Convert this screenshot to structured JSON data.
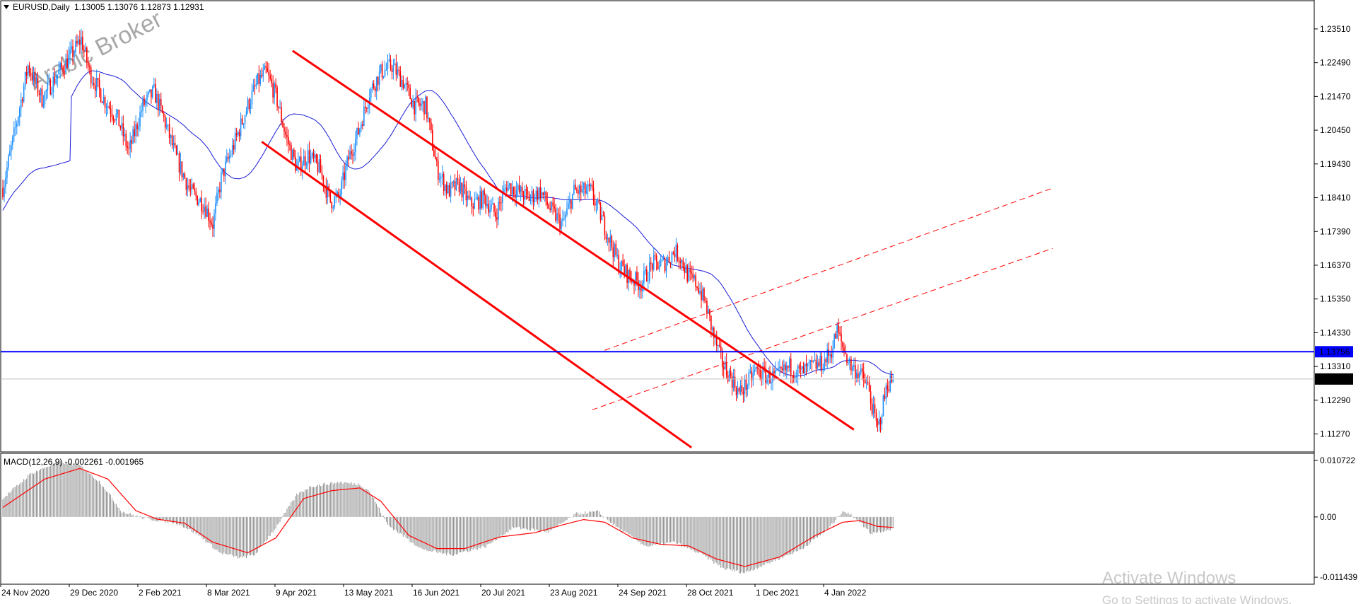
{
  "header": {
    "symbol_label": "EURUSD,Daily",
    "ohlc_text": "1.13005 1.13076 1.12873 1.12931",
    "menu_arrow_icon": "triangle-down-icon"
  },
  "watermark": "Arabic Broker",
  "macd_label": "MACD(12,26,9) -0.002261 -0.001965",
  "windows_activation": {
    "title": "Activate Windows",
    "subtitle": "Go to Settings to activate Windows."
  },
  "colors": {
    "bull": "#1e90ff",
    "bear": "#ff0000",
    "ma": "#1a1ad6",
    "channel": "#ff0000",
    "hline": "#0000ff",
    "macd_hist": "#8c8c8c",
    "macd_signal": "#ff0000"
  },
  "chart_data": {
    "type": "candlestick",
    "symbol": "EURUSD",
    "timeframe": "Daily",
    "price_ticks": [
      "1.23510",
      "1.22490",
      "1.21470",
      "1.20450",
      "1.19430",
      "1.18410",
      "1.17390",
      "1.16370",
      "1.15350",
      "1.14330",
      "1.13310",
      "1.12290",
      "1.11270"
    ],
    "price_range": [
      1.1077,
      1.2385
    ],
    "current_price": "1.12931",
    "hline_price": "1.13756",
    "date_ticks": [
      "24 Nov 2020",
      "29 Dec 2020",
      "2 Feb 2021",
      "8 Mar 2021",
      "9 Apr 2021",
      "13 May 2021",
      "16 Jun 2021",
      "20 Jul 2021",
      "23 Aug 2021",
      "24 Sep 2021",
      "28 Oct 2021",
      "1 Dec 2021",
      "4 Jan 2022"
    ],
    "price_path": [
      [
        0,
        1.187
      ],
      [
        8,
        1.203
      ],
      [
        18,
        1.224
      ],
      [
        28,
        1.214
      ],
      [
        40,
        1.222
      ],
      [
        50,
        1.228
      ],
      [
        56,
        1.232
      ],
      [
        62,
        1.222
      ],
      [
        72,
        1.214
      ],
      [
        82,
        1.208
      ],
      [
        90,
        1.198
      ],
      [
        100,
        1.212
      ],
      [
        108,
        1.216
      ],
      [
        115,
        1.208
      ],
      [
        124,
        1.196
      ],
      [
        134,
        1.186
      ],
      [
        144,
        1.182
      ],
      [
        150,
        1.176
      ],
      [
        156,
        1.19
      ],
      [
        165,
        1.2
      ],
      [
        175,
        1.212
      ],
      [
        182,
        1.219
      ],
      [
        188,
        1.222
      ],
      [
        195,
        1.215
      ],
      [
        202,
        1.203
      ],
      [
        210,
        1.193
      ],
      [
        218,
        1.197
      ],
      [
        226,
        1.193
      ],
      [
        234,
        1.183
      ],
      [
        240,
        1.184
      ],
      [
        247,
        1.196
      ],
      [
        254,
        1.204
      ],
      [
        262,
        1.216
      ],
      [
        270,
        1.222
      ],
      [
        278,
        1.224
      ],
      [
        286,
        1.219
      ],
      [
        294,
        1.212
      ],
      [
        302,
        1.212
      ],
      [
        310,
        1.193
      ],
      [
        318,
        1.186
      ],
      [
        326,
        1.188
      ],
      [
        334,
        1.182
      ],
      [
        344,
        1.184
      ],
      [
        352,
        1.179
      ],
      [
        360,
        1.188
      ],
      [
        368,
        1.186
      ],
      [
        376,
        1.184
      ],
      [
        384,
        1.186
      ],
      [
        392,
        1.18
      ],
      [
        400,
        1.176
      ],
      [
        408,
        1.186
      ],
      [
        414,
        1.186
      ],
      [
        420,
        1.186
      ],
      [
        426,
        1.18
      ],
      [
        433,
        1.172
      ],
      [
        440,
        1.164
      ],
      [
        448,
        1.16
      ],
      [
        456,
        1.158
      ],
      [
        464,
        1.164
      ],
      [
        472,
        1.164
      ],
      [
        480,
        1.168
      ],
      [
        484,
        1.166
      ],
      [
        490,
        1.16
      ],
      [
        496,
        1.158
      ],
      [
        502,
        1.152
      ],
      [
        508,
        1.142
      ],
      [
        514,
        1.134
      ],
      [
        520,
        1.13
      ],
      [
        526,
        1.125
      ],
      [
        532,
        1.128
      ],
      [
        538,
        1.132
      ],
      [
        546,
        1.13
      ],
      [
        554,
        1.13
      ],
      [
        562,
        1.133
      ],
      [
        570,
        1.131
      ],
      [
        578,
        1.133
      ],
      [
        586,
        1.134
      ],
      [
        592,
        1.138
      ],
      [
        596,
        1.144
      ],
      [
        600,
        1.139
      ],
      [
        606,
        1.133
      ],
      [
        612,
        1.131
      ],
      [
        618,
        1.127
      ],
      [
        622,
        1.119
      ],
      [
        625,
        1.114
      ],
      [
        628,
        1.12
      ],
      [
        632,
        1.128
      ],
      [
        636,
        1.129
      ]
    ],
    "macd_ticks": [
      "0.010722",
      "0.00",
      "-0.011439"
    ],
    "macd_range": [
      -0.0125,
      0.0118
    ],
    "macd_path": [
      [
        0,
        0.0035
      ],
      [
        20,
        0.0082
      ],
      [
        40,
        0.0105
      ],
      [
        55,
        0.0098
      ],
      [
        70,
        0.0065
      ],
      [
        85,
        0.001
      ],
      [
        100,
        -0.0002
      ],
      [
        115,
        -0.0008
      ],
      [
        125,
        -0.0012
      ],
      [
        140,
        -0.0034
      ],
      [
        155,
        -0.0068
      ],
      [
        170,
        -0.0078
      ],
      [
        180,
        -0.0072
      ],
      [
        195,
        -0.002
      ],
      [
        210,
        0.0042
      ],
      [
        220,
        0.0058
      ],
      [
        240,
        0.0066
      ],
      [
        255,
        0.0062
      ],
      [
        262,
        0.0049
      ],
      [
        275,
        -0.0015
      ],
      [
        300,
        -0.0062
      ],
      [
        320,
        -0.0072
      ],
      [
        345,
        -0.0056
      ],
      [
        365,
        -0.002
      ],
      [
        390,
        -0.0028
      ],
      [
        410,
        0.0006
      ],
      [
        425,
        0.001
      ],
      [
        440,
        -0.0022
      ],
      [
        460,
        -0.0056
      ],
      [
        480,
        -0.0048
      ],
      [
        500,
        -0.0072
      ],
      [
        515,
        -0.0098
      ],
      [
        530,
        -0.0106
      ],
      [
        550,
        -0.0084
      ],
      [
        570,
        -0.0062
      ],
      [
        590,
        -0.0022
      ],
      [
        600,
        0.0012
      ],
      [
        610,
        -0.0003
      ],
      [
        620,
        -0.0031
      ],
      [
        636,
        -0.0022
      ]
    ],
    "signal_path": [
      [
        0,
        0.0018
      ],
      [
        30,
        0.0072
      ],
      [
        55,
        0.0092
      ],
      [
        75,
        0.0072
      ],
      [
        95,
        0.0012
      ],
      [
        110,
        -0.0004
      ],
      [
        130,
        -0.0012
      ],
      [
        150,
        -0.0048
      ],
      [
        175,
        -0.0068
      ],
      [
        195,
        -0.004
      ],
      [
        215,
        0.0035
      ],
      [
        235,
        0.005
      ],
      [
        255,
        0.0055
      ],
      [
        270,
        0.003
      ],
      [
        290,
        -0.0035
      ],
      [
        310,
        -0.006
      ],
      [
        330,
        -0.006
      ],
      [
        355,
        -0.0038
      ],
      [
        380,
        -0.003
      ],
      [
        400,
        -0.0015
      ],
      [
        415,
        -0.0005
      ],
      [
        430,
        -0.001
      ],
      [
        450,
        -0.004
      ],
      [
        470,
        -0.0052
      ],
      [
        490,
        -0.0055
      ],
      [
        510,
        -0.008
      ],
      [
        530,
        -0.0094
      ],
      [
        555,
        -0.0076
      ],
      [
        580,
        -0.0036
      ],
      [
        600,
        -0.001
      ],
      [
        612,
        -0.0007
      ],
      [
        625,
        -0.0018
      ],
      [
        636,
        -0.002
      ]
    ],
    "channel_upper": [
      [
        207,
        1.2285
      ],
      [
        608,
        1.114
      ]
    ],
    "channel_lower": [
      [
        185,
        1.201
      ],
      [
        492,
        1.1086
      ]
    ],
    "rising_lower": [
      [
        421,
        1.12
      ],
      [
        750,
        1.1688
      ]
    ],
    "rising_upper": [
      [
        430,
        1.138
      ],
      [
        750,
        1.187
      ]
    ]
  }
}
